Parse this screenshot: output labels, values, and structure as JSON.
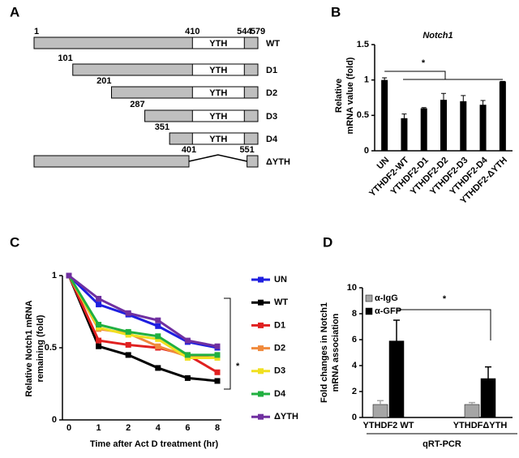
{
  "panel_labels": [
    "A",
    "B",
    "C",
    "D"
  ],
  "diagram": {
    "scale_labels": [
      1,
      410,
      544,
      579
    ],
    "domain_label": "YTH",
    "constructs": [
      {
        "name": "WT"
      },
      {
        "name": "D1",
        "start": 101
      },
      {
        "name": "D2",
        "start": 201
      },
      {
        "name": "D3",
        "start": 287
      },
      {
        "name": "D4",
        "start": 351
      },
      {
        "name": "ΔYTH",
        "gap": [
          401,
          551
        ]
      }
    ]
  },
  "chart_data": [
    {
      "type": "bar",
      "title": "Notch1",
      "ylabel": [
        "Relative",
        "mRNA value (fold)"
      ],
      "categories": [
        "UN",
        "YTHDF2-WT",
        "YTHDF2-D1",
        "YTHDF2-D2",
        "YTHDF2-D3",
        "YTHDF2-D4",
        "YTHDF2-ΔYTH"
      ],
      "values": [
        1.0,
        0.46,
        0.6,
        0.72,
        0.7,
        0.65,
        0.98
      ],
      "errors": [
        0.03,
        0.06,
        0.01,
        0.09,
        0.08,
        0.06,
        0.0
      ],
      "color": "#000000",
      "ylim": [
        0,
        1.5
      ],
      "yticks": [
        0,
        0.5,
        1,
        1.5
      ],
      "annotation": "*"
    },
    {
      "type": "line",
      "xlabel": "Time after Act D treatment (hr)",
      "ylabel": [
        "Relative Notch1 mRNA",
        "remaining (fold)"
      ],
      "categories": [
        "0",
        "1",
        "2",
        "4",
        "6",
        "8"
      ],
      "ylim": [
        0,
        1
      ],
      "yticks": [
        0,
        0.5,
        1
      ],
      "annotation": "*",
      "series": [
        {
          "name": "UN",
          "color": "#1f1fe0",
          "values": [
            1,
            0.8,
            0.73,
            0.65,
            0.54,
            0.5
          ]
        },
        {
          "name": "WT",
          "color": "#000000",
          "values": [
            1,
            0.51,
            0.45,
            0.36,
            0.29,
            0.27
          ]
        },
        {
          "name": "D1",
          "color": "#e02020",
          "values": [
            1,
            0.55,
            0.52,
            0.5,
            0.45,
            0.33
          ]
        },
        {
          "name": "D2",
          "color": "#f08a3c",
          "values": [
            1,
            0.63,
            0.6,
            0.51,
            0.44,
            0.45
          ]
        },
        {
          "name": "D3",
          "color": "#f0e020",
          "values": [
            1,
            0.64,
            0.59,
            0.56,
            0.43,
            0.43
          ]
        },
        {
          "name": "D4",
          "color": "#20b040",
          "values": [
            1,
            0.66,
            0.61,
            0.58,
            0.45,
            0.45
          ]
        },
        {
          "name": "ΔYTH",
          "color": "#7030a0",
          "values": [
            1,
            0.84,
            0.74,
            0.69,
            0.55,
            0.51
          ]
        }
      ]
    },
    {
      "type": "grouped_bar",
      "ylabel": [
        "Fold changes in Notch1",
        "mRNA association"
      ],
      "categories": [
        "YTHDF2 WT",
        "YTHDFΔYTH"
      ],
      "group_label": "qRT-PCR",
      "ylim": [
        0,
        10
      ],
      "yticks": [
        0,
        2,
        4,
        6,
        8,
        10
      ],
      "annotation": "*",
      "series": [
        {
          "name": "α-IgG",
          "color": "#a6a6a6",
          "values": [
            1.0,
            1.0
          ],
          "errors": [
            0.3,
            0.15
          ]
        },
        {
          "name": "α-GFP",
          "color": "#000000",
          "values": [
            5.9,
            3.0
          ],
          "errors": [
            1.6,
            0.9
          ]
        }
      ]
    }
  ]
}
